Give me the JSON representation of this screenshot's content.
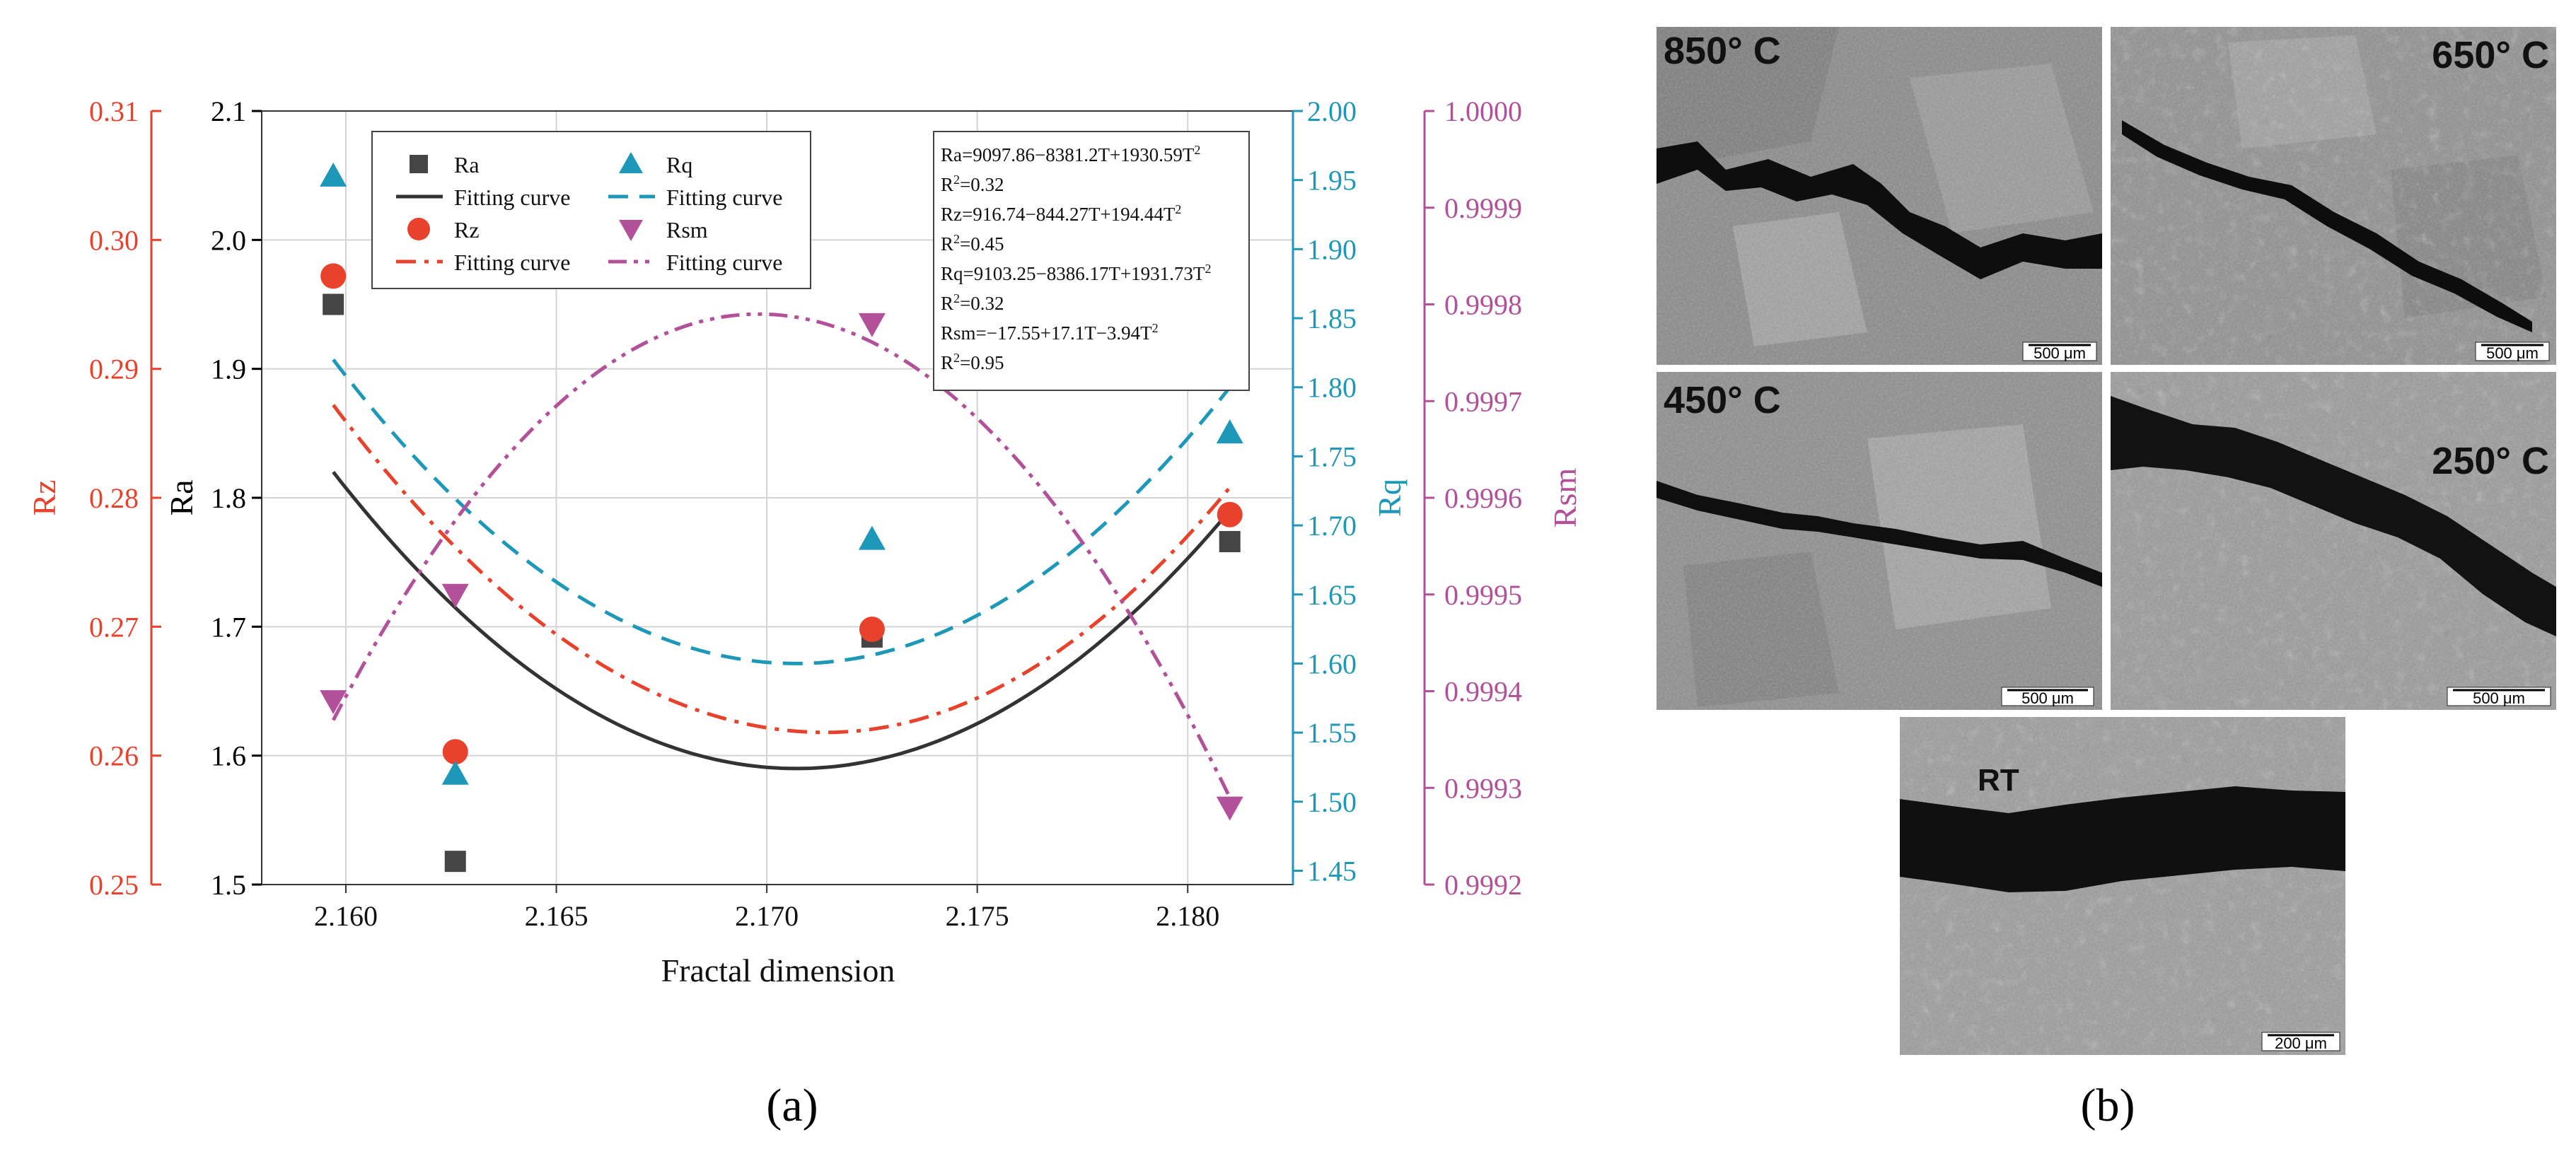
{
  "chart_data": {
    "type": "scatter",
    "panel_label": "(a)",
    "xlabel": "Fractal dimension",
    "xlim": [
      2.158,
      2.1825
    ],
    "xticks": [
      "2.160",
      "2.165",
      "2.170",
      "2.175",
      "2.180"
    ],
    "grid": true,
    "axes": {
      "Ra": {
        "label": "Ra",
        "range": [
          1.5,
          2.1
        ],
        "ticks": [
          "1.5",
          "1.6",
          "1.7",
          "1.8",
          "1.9",
          "2.0",
          "2.1"
        ],
        "color": "#000000"
      },
      "Rz": {
        "label": "Rz",
        "range": [
          0.25,
          0.31
        ],
        "ticks": [
          "0.25",
          "0.26",
          "0.27",
          "0.28",
          "0.29",
          "0.30",
          "0.31"
        ],
        "color": "#e8412c"
      },
      "Rq": {
        "label": "Rq",
        "range": [
          1.44,
          2.0
        ],
        "ticks": [
          "1.45",
          "1.50",
          "1.55",
          "1.60",
          "1.65",
          "1.70",
          "1.75",
          "1.80",
          "1.85",
          "1.90",
          "1.95",
          "2.00"
        ],
        "color": "#1e98b8"
      },
      "Rsm": {
        "label": "Rsm",
        "range": [
          0.9992,
          1.0
        ],
        "ticks": [
          "0.9992",
          "0.9993",
          "0.9994",
          "0.9995",
          "0.9996",
          "0.9997",
          "0.9998",
          "0.9999",
          "1.0000"
        ],
        "color": "#b3509a"
      }
    },
    "x": [
      2.1597,
      2.1626,
      2.1725,
      2.181
    ],
    "series": [
      {
        "name": "Ra",
        "axis": "Ra",
        "marker": "square",
        "color": "#454545",
        "values": [
          1.95,
          1.518,
          1.692,
          1.766
        ]
      },
      {
        "name": "Rz",
        "axis": "Rz",
        "marker": "circle",
        "color": "#e8412c",
        "values": [
          0.2972,
          0.2603,
          0.2698,
          0.2787
        ]
      },
      {
        "name": "Rq",
        "axis": "Rq",
        "marker": "triangle-up",
        "color": "#1e98b8",
        "values": [
          1.953,
          1.52,
          1.69,
          1.767
        ]
      },
      {
        "name": "Rsm",
        "axis": "Rsm",
        "marker": "triangle-down",
        "color": "#b3509a",
        "values": [
          0.99939,
          0.9995,
          0.99978,
          0.99928
        ]
      }
    ],
    "fits": [
      {
        "name": "Fitting curve",
        "axis": "Ra",
        "color": "#333333",
        "dash": "solid",
        "vertex": [
          2.1707,
          1.59
        ],
        "start": [
          2.1597,
          1.82
        ],
        "end": [
          2.181,
          1.79
        ]
      },
      {
        "name": "Fitting curve",
        "axis": "Rz",
        "color": "#e8412c",
        "dash": "dash-dot",
        "vertex": [
          2.1714,
          0.2618
        ],
        "start": [
          2.1597,
          0.2872
        ],
        "end": [
          2.181,
          0.2808
        ]
      },
      {
        "name": "Fitting curve",
        "axis": "Rq",
        "color": "#1e98b8",
        "dash": "dashed",
        "vertex": [
          2.1707,
          1.6
        ],
        "start": [
          2.1597,
          1.82
        ],
        "end": [
          2.181,
          1.8
        ]
      },
      {
        "name": "Fitting curve",
        "axis": "Rsm",
        "color": "#b3509a",
        "dash": "dash-dot-dot",
        "vertex": [
          2.1698,
          0.99979
        ],
        "start": [
          2.1597,
          0.99937
        ],
        "end": [
          2.181,
          0.99929
        ]
      }
    ],
    "legend": {
      "entries": [
        {
          "label": "Ra",
          "kind": "marker",
          "series": 0
        },
        {
          "label": "Fitting curve",
          "kind": "line",
          "series": 0
        },
        {
          "label": "Rz",
          "kind": "marker",
          "series": 1
        },
        {
          "label": "Fitting curve",
          "kind": "line",
          "series": 1
        },
        {
          "label": "Rq",
          "kind": "marker",
          "series": 2
        },
        {
          "label": "Fitting curve",
          "kind": "line",
          "series": 2
        },
        {
          "label": "Rsm",
          "kind": "marker",
          "series": 3
        },
        {
          "label": "Fitting curve",
          "kind": "line",
          "series": 3
        }
      ]
    },
    "equations": [
      {
        "base": "Ra=9097.86−8381.2T+1930.59T",
        "sup": "2",
        "tail": ""
      },
      {
        "base": "R",
        "sup": "2",
        "tail": "=0.32"
      },
      {
        "base": "Rz=916.74−844.27T+194.44T",
        "sup": "2",
        "tail": ""
      },
      {
        "base": "R",
        "sup": "2",
        "tail": "=0.45"
      },
      {
        "base": "Rq=9103.25−8386.17T+1931.73T",
        "sup": "2",
        "tail": ""
      },
      {
        "base": "R",
        "sup": "2",
        "tail": "=0.32"
      },
      {
        "base": "Rsm=−17.55+17.1T−3.94T",
        "sup": "2",
        "tail": ""
      },
      {
        "base": "R",
        "sup": "2",
        "tail": "=0.95"
      }
    ]
  },
  "micrographs": {
    "panel_label": "(b)",
    "images": [
      {
        "temperature": "850° C",
        "scale": "500 μm"
      },
      {
        "temperature": "650° C",
        "scale": "500 μm"
      },
      {
        "temperature": "450° C",
        "scale": "500 μm"
      },
      {
        "temperature": "250° C",
        "scale": "500 μm"
      },
      {
        "temperature": "RT",
        "scale": "200 μm"
      }
    ]
  }
}
